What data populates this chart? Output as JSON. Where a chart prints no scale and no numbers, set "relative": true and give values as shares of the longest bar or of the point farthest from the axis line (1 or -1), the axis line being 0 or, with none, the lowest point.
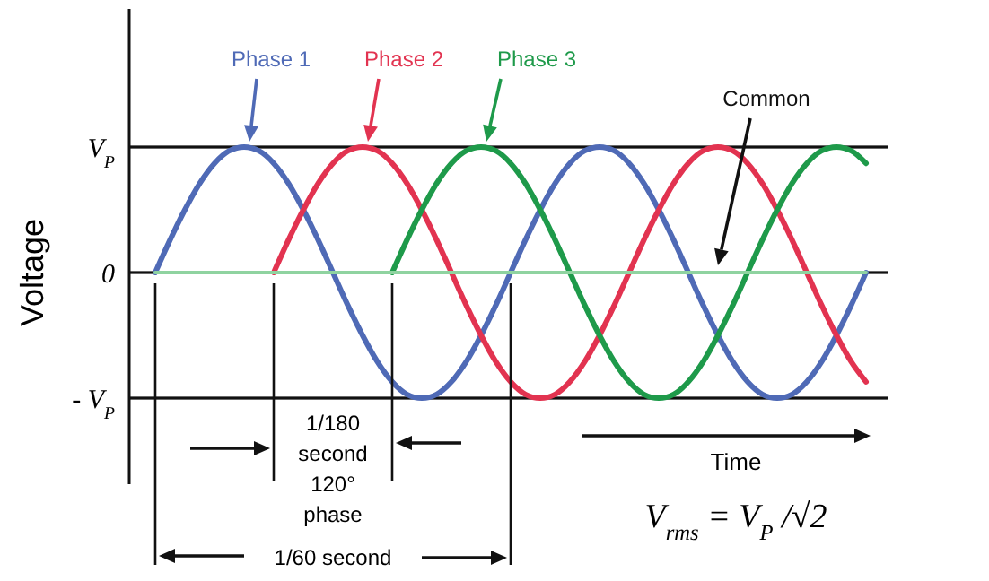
{
  "chart_data": {
    "type": "line",
    "xlabel": "Time",
    "ylabel": "Voltage",
    "categories": [
      null,
      null,
      null,
      null,
      null,
      null,
      null,
      null,
      null,
      null,
      null,
      null,
      null,
      null,
      null,
      null,
      null,
      null,
      null,
      null,
      null,
      null,
      null,
      null,
      null,
      null,
      null,
      null,
      null,
      null,
      null,
      null,
      null,
      null,
      null,
      null,
      null,
      null,
      null,
      null,
      null,
      null,
      null,
      null,
      null,
      null,
      null,
      null,
      null
    ],
    "relative": true,
    "ref_lines": [
      {
        "axis": "y",
        "value": 1,
        "label": "V$_{P}$"
      },
      {
        "axis": "y",
        "value": 0,
        "label": "0"
      },
      {
        "axis": "y",
        "value": -1,
        "label": "- V$_{P}$"
      }
    ],
    "series": [
      {
        "name": "Phase 1",
        "color": "#4f6ab6",
        "values": [
          0,
          0.26,
          0.5,
          0.71,
          0.87,
          0.97,
          1,
          0.97,
          0.87,
          0.71,
          0.5,
          0.26,
          0,
          -0.26,
          -0.5,
          -0.71,
          -0.87,
          -0.97,
          -1,
          -0.97,
          -0.87,
          -0.71,
          -0.5,
          -0.26,
          0,
          0.26,
          0.5,
          0.71,
          0.87,
          0.97,
          1,
          0.97,
          0.87,
          0.71,
          0.5,
          0.26,
          0,
          -0.26,
          -0.5,
          -0.71,
          -0.87,
          -0.97,
          -1,
          -0.97,
          -0.87,
          -0.71,
          -0.5,
          -0.26,
          0
        ]
      },
      {
        "name": "Phase 2",
        "color": "#e23350",
        "values": [
          null,
          null,
          null,
          null,
          null,
          null,
          null,
          null,
          0,
          0.26,
          0.5,
          0.71,
          0.87,
          0.97,
          1,
          0.97,
          0.87,
          0.71,
          0.5,
          0.26,
          0,
          -0.26,
          -0.5,
          -0.71,
          -0.87,
          -0.97,
          -1,
          -0.97,
          -0.87,
          -0.71,
          -0.5,
          -0.26,
          0,
          0.26,
          0.5,
          0.71,
          0.87,
          0.97,
          1,
          0.97,
          0.87,
          0.71,
          0.5,
          0.26,
          0,
          -0.26,
          -0.5,
          -0.71,
          -0.87
        ]
      },
      {
        "name": "Phase 3",
        "color": "#1e9a4a",
        "values": [
          null,
          null,
          null,
          null,
          null,
          null,
          null,
          null,
          null,
          null,
          null,
          null,
          null,
          null,
          null,
          null,
          0,
          0.26,
          0.5,
          0.71,
          0.87,
          0.97,
          1,
          0.97,
          0.87,
          0.71,
          0.5,
          0.26,
          0,
          -0.26,
          -0.5,
          -0.71,
          -0.87,
          -0.97,
          -1,
          -0.97,
          -0.87,
          -0.71,
          -0.5,
          -0.26,
          0,
          0.26,
          0.5,
          0.71,
          0.87,
          0.97,
          1,
          0.97,
          0.87
        ]
      },
      {
        "color": "#8fd3a0",
        "values": [
          0,
          0,
          0,
          0,
          0,
          0,
          0,
          0,
          0,
          0,
          0,
          0,
          0,
          0,
          0,
          0,
          0,
          0,
          0,
          0,
          0,
          0,
          0,
          0,
          0,
          0,
          0,
          0,
          0,
          0,
          0,
          0,
          0,
          0,
          0,
          0,
          0,
          0,
          0,
          0,
          0,
          0,
          0,
          0,
          0,
          0,
          0,
          0,
          0
        ]
      }
    ],
    "grid": true,
    "annotations": [
      "Common",
      "1/180 second 120° phase",
      "1/60 second",
      "V$_{rms}$ = V$_{P}$ /√2"
    ]
  }
}
